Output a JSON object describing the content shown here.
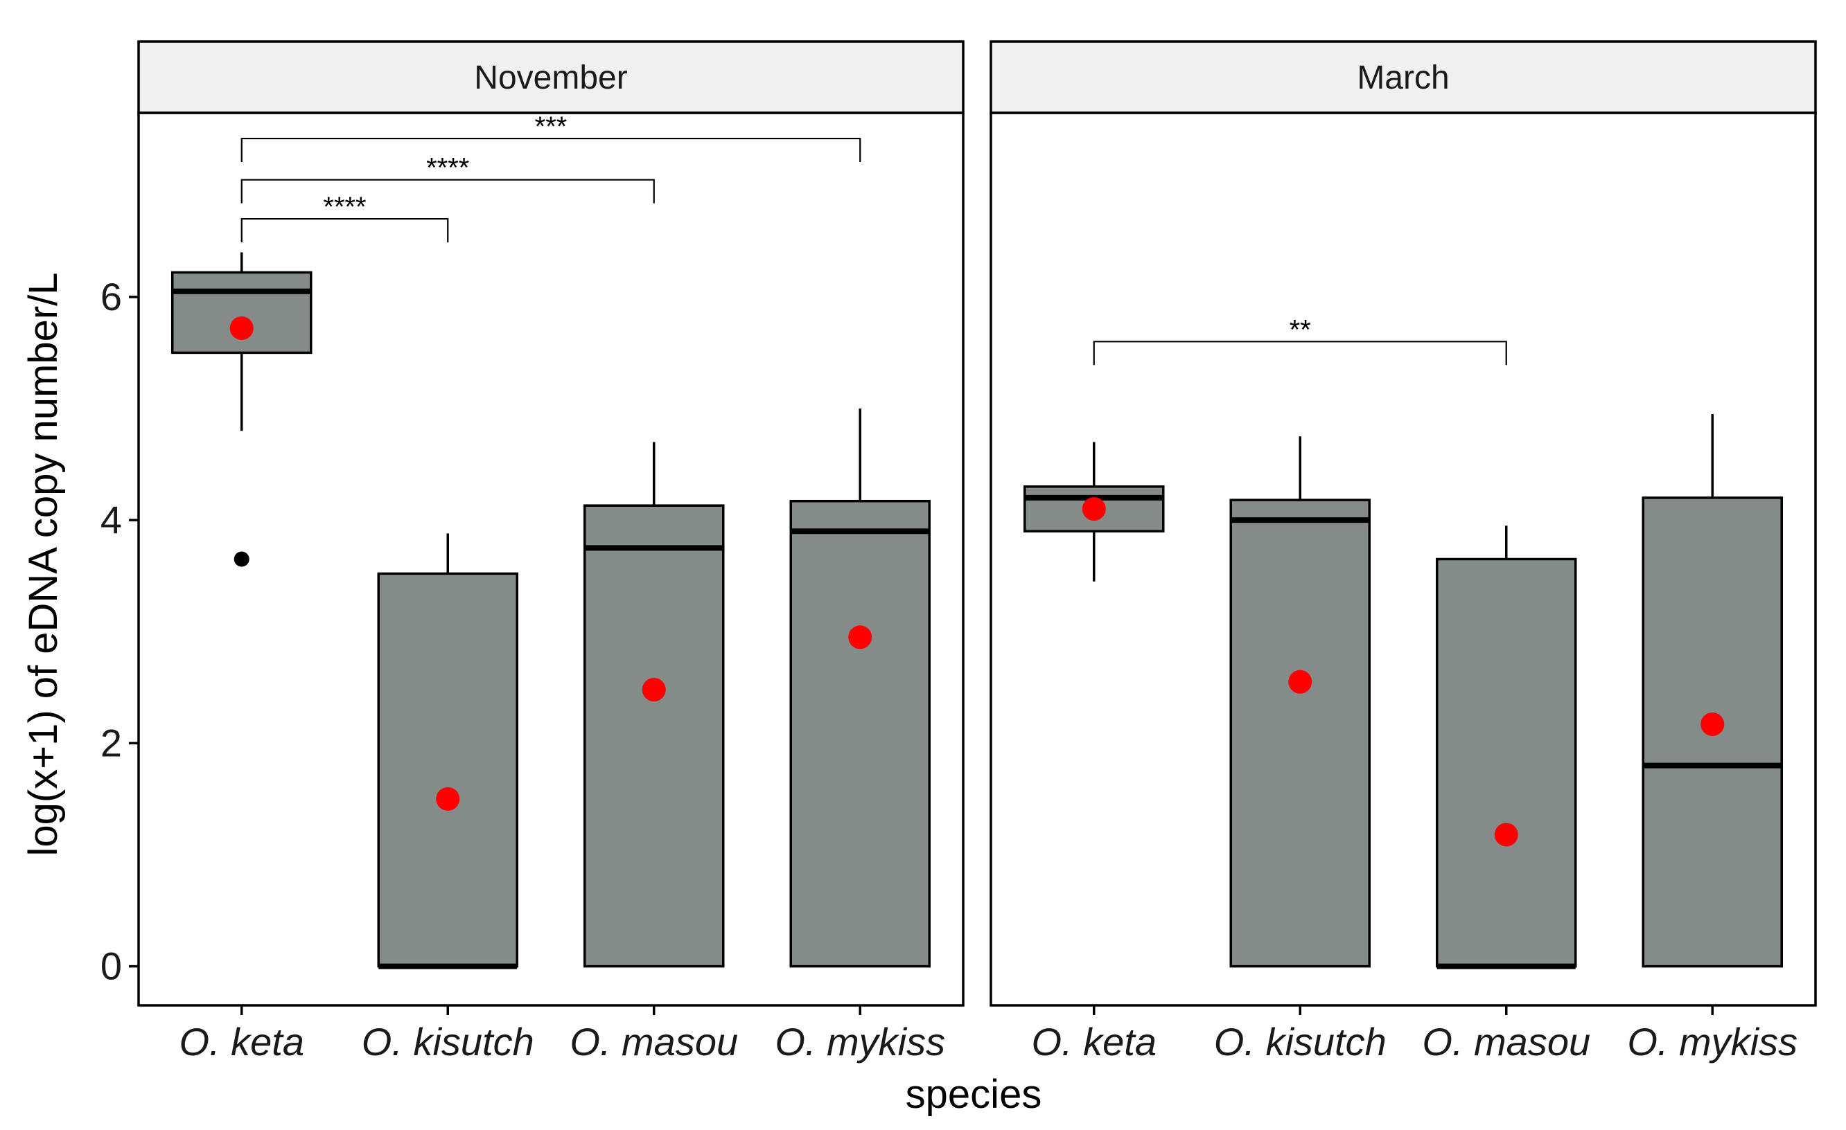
{
  "chart_data": {
    "type": "boxplot",
    "xlabel": "species",
    "ylabel": "log(x+1) of eDNA copy number/L",
    "ylim": [
      -0.35,
      7.65
    ],
    "yticks": [
      0,
      2,
      4,
      6
    ],
    "ytick_labels": [
      "0",
      "2",
      "4",
      "6"
    ],
    "categories": [
      "O. keta",
      "O. kisutch",
      "O. masou",
      "O. mykiss"
    ],
    "colors": {
      "box": "#858b89",
      "mean": "#ff0000",
      "strip": "#f0f0f0"
    },
    "panels": [
      {
        "name": "November",
        "boxes": [
          {
            "species": "O. keta",
            "min": 4.8,
            "q1": 5.5,
            "median": 6.05,
            "q3": 6.22,
            "max": 6.4,
            "mean": 5.72,
            "outliers": [
              3.65
            ]
          },
          {
            "species": "O. kisutch",
            "min": 0,
            "q1": 0,
            "median": 0,
            "q3": 3.52,
            "max": 3.88,
            "mean": 1.5,
            "outliers": []
          },
          {
            "species": "O. masou",
            "min": 0,
            "q1": 0,
            "median": 3.75,
            "q3": 4.13,
            "max": 4.7,
            "mean": 2.48,
            "outliers": []
          },
          {
            "species": "O. mykiss",
            "min": 0,
            "q1": 0,
            "median": 3.9,
            "q3": 4.17,
            "max": 5.0,
            "mean": 2.95,
            "outliers": []
          }
        ],
        "comparisons": [
          {
            "from": "O. keta",
            "to": "O. kisutch",
            "label": "****",
            "level": 6.7
          },
          {
            "from": "O. keta",
            "to": "O. masou",
            "label": "****",
            "level": 7.05
          },
          {
            "from": "O. keta",
            "to": "O. mykiss",
            "label": "***",
            "level": 7.42
          }
        ]
      },
      {
        "name": "March",
        "boxes": [
          {
            "species": "O. keta",
            "min": 3.45,
            "q1": 3.9,
            "median": 4.2,
            "q3": 4.3,
            "max": 4.7,
            "mean": 4.1,
            "outliers": []
          },
          {
            "species": "O. kisutch",
            "min": 0,
            "q1": 0,
            "median": 4.0,
            "q3": 4.18,
            "max": 4.75,
            "mean": 2.55,
            "outliers": []
          },
          {
            "species": "O. masou",
            "min": 0,
            "q1": 0,
            "median": 0,
            "q3": 3.65,
            "max": 3.95,
            "mean": 1.18,
            "outliers": []
          },
          {
            "species": "O. mykiss",
            "min": 0,
            "q1": 0,
            "median": 1.8,
            "q3": 4.2,
            "max": 4.95,
            "mean": 2.17,
            "outliers": []
          }
        ],
        "comparisons": [
          {
            "from": "O. keta",
            "to": "O. masou",
            "label": "**",
            "level": 5.6
          }
        ]
      }
    ]
  }
}
